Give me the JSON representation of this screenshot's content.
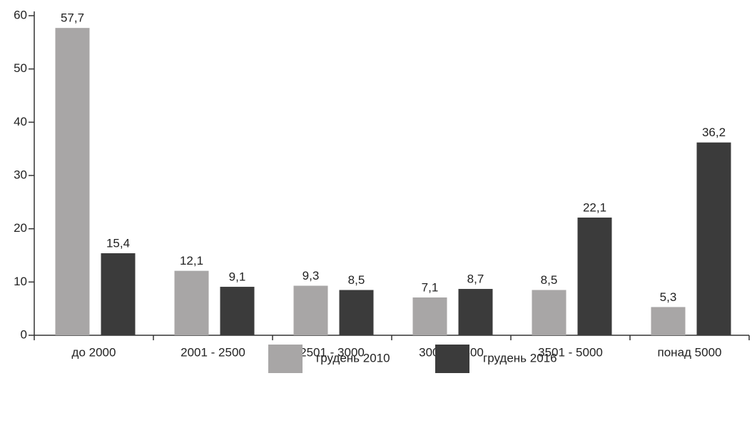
{
  "chart_data": {
    "type": "bar",
    "categories": [
      "до 2000",
      "2001 - 2500",
      "2501 - 3000",
      "3001 - 3500",
      "3501 - 5000",
      "понад 5000"
    ],
    "series": [
      {
        "name": "грудень 2010",
        "color": "#a8a6a6",
        "values": [
          57.7,
          12.1,
          9.3,
          7.1,
          8.5,
          5.3
        ],
        "value_labels": [
          "57,7",
          "12,1",
          "9,3",
          "7,1",
          "8,5",
          "5,3"
        ]
      },
      {
        "name": "грудень 2016",
        "color": "#3b3b3b",
        "values": [
          15.4,
          9.1,
          8.5,
          8.7,
          22.1,
          36.2
        ],
        "value_labels": [
          "15,4",
          "9,1",
          "8,5",
          "8,7",
          "22,1",
          "36,2"
        ]
      }
    ],
    "ylim": [
      0,
      60
    ],
    "yticks": [
      0,
      10,
      20,
      30,
      40,
      50,
      60
    ],
    "legend": "bottom"
  }
}
